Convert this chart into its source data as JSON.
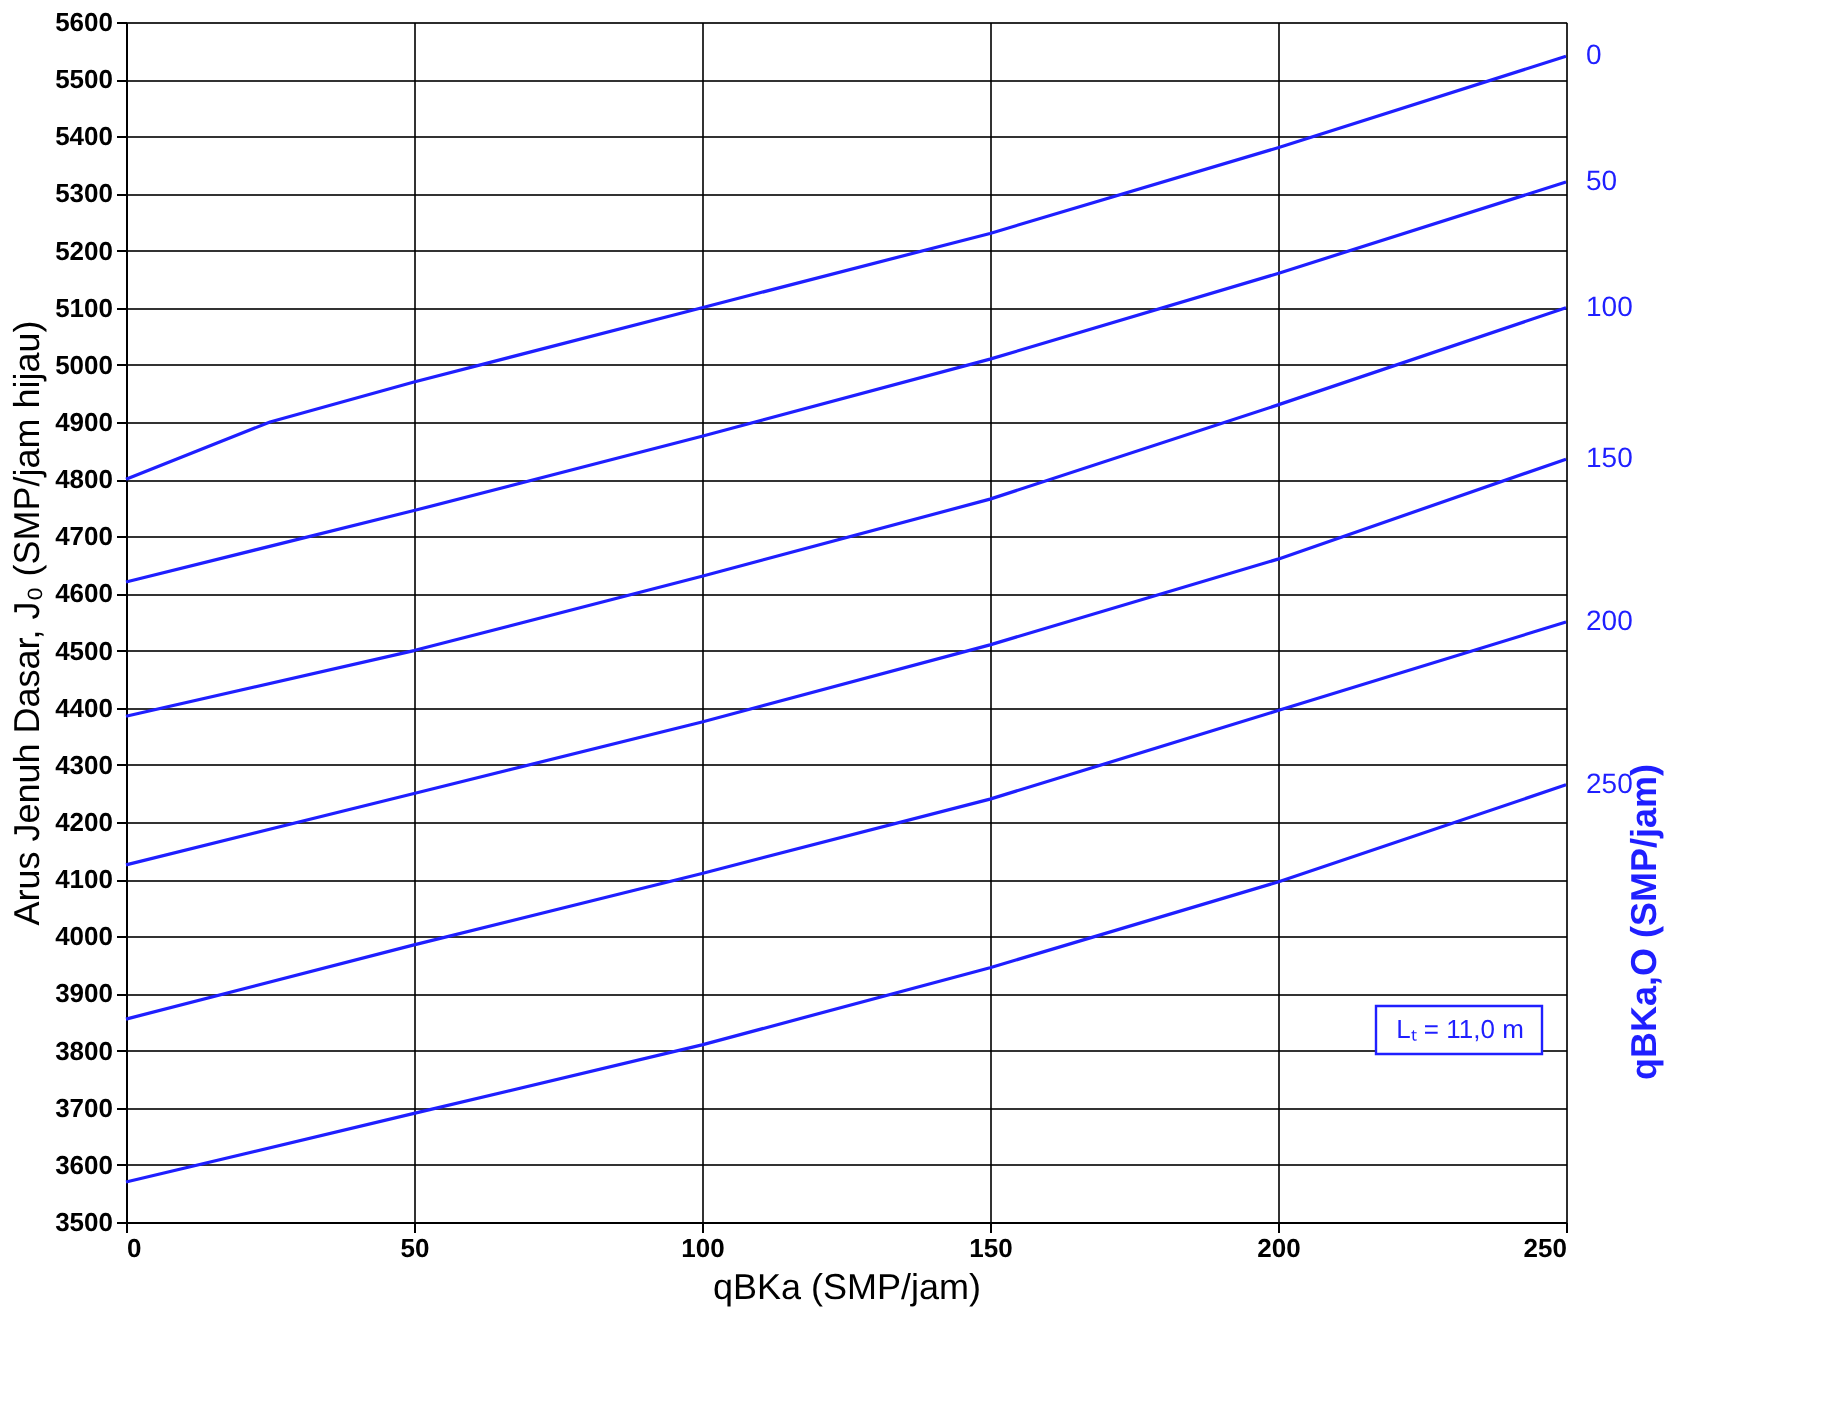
{
  "chart_data": {
    "type": "line",
    "xlabel": "qBKa (SMP/jam)",
    "ylabel": "Arus Jenuh Dasar, J₀ (SMP/jam hijau)",
    "y2label": "qBKa,O (SMP/jam)",
    "x": [
      0,
      50,
      100,
      150,
      200,
      250
    ],
    "series": [
      {
        "name": "0",
        "color": "#1f1fff",
        "x": [
          0,
          25,
          50,
          100,
          150,
          200,
          250
        ],
        "values": [
          4800,
          4900,
          4970,
          5100,
          5230,
          5380,
          5540
        ]
      },
      {
        "name": "50",
        "color": "#1f1fff",
        "values": [
          4620,
          4745,
          4875,
          5010,
          5160,
          5320
        ]
      },
      {
        "name": "100",
        "color": "#1f1fff",
        "values": [
          4385,
          4500,
          4630,
          4765,
          4930,
          5100
        ]
      },
      {
        "name": "150",
        "color": "#1f1fff",
        "values": [
          4125,
          4250,
          4375,
          4510,
          4660,
          4835
        ]
      },
      {
        "name": "200",
        "color": "#1f1fff",
        "values": [
          3855,
          3985,
          4110,
          4240,
          4395,
          4550
        ]
      },
      {
        "name": "250",
        "color": "#1f1fff",
        "values": [
          3570,
          3690,
          3810,
          3945,
          4095,
          4265
        ]
      }
    ],
    "xlim": [
      0,
      250
    ],
    "xticks": [
      0,
      50,
      100,
      150,
      200,
      250
    ],
    "ylim": [
      3500,
      5600
    ],
    "yticks": [
      3500,
      3600,
      3700,
      3800,
      3900,
      4000,
      4100,
      4200,
      4300,
      4400,
      4500,
      4600,
      4700,
      4800,
      4900,
      5000,
      5100,
      5200,
      5300,
      5400,
      5500,
      5600
    ],
    "grid": true,
    "legend": false,
    "marker": "none",
    "line_style": "solid",
    "annotations": [
      "Lₜ = 11,0 m"
    ]
  }
}
